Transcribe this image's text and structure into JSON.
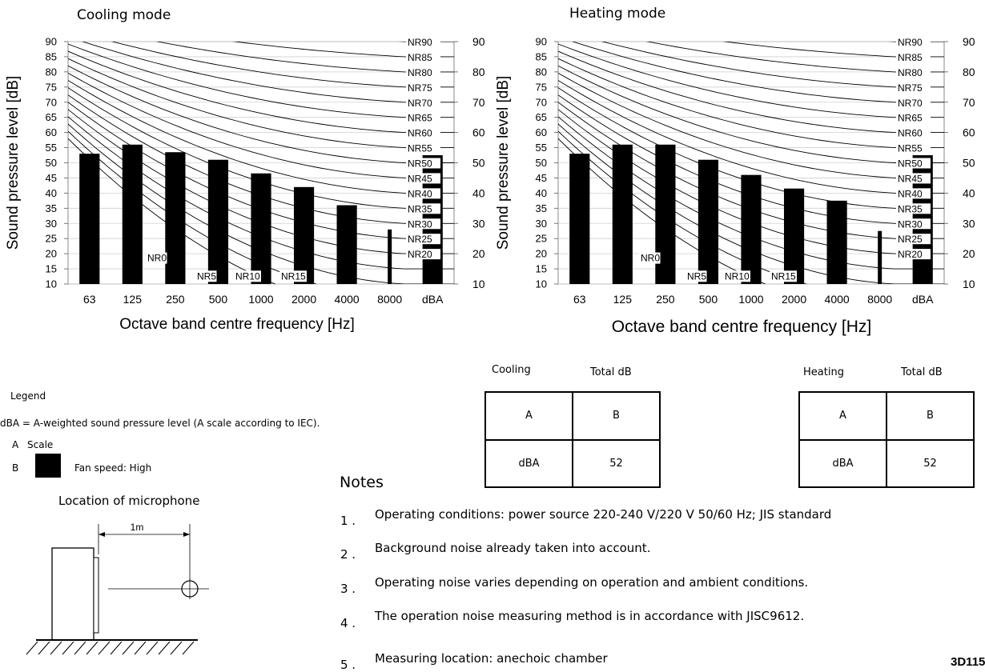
{
  "chart_data": [
    {
      "type": "bar",
      "title": "Cooling mode",
      "xlabel": "Octave band centre frequency [Hz]",
      "ylabel": "Sound pressure level [dB]",
      "categories": [
        "63",
        "125",
        "250",
        "500",
        "1000",
        "2000",
        "4000",
        "8000",
        "dBA"
      ],
      "values": [
        53,
        56,
        53.5,
        51,
        46.5,
        42,
        36,
        28,
        52.5
      ],
      "ylim": [
        10,
        90
      ],
      "yticks_left": [
        "10",
        "15",
        "20",
        "25",
        "30",
        "35",
        "40",
        "45",
        "50",
        "55",
        "60",
        "65",
        "70",
        "75",
        "80",
        "85",
        "90"
      ],
      "yticks_right": [
        "10",
        "20",
        "30",
        "40",
        "50",
        "60",
        "70",
        "80",
        "90"
      ],
      "nr_curves": [
        {
          "label": "NR90"
        },
        {
          "label": "NR85"
        },
        {
          "label": "NR80"
        },
        {
          "label": "NR75"
        },
        {
          "label": "NR70"
        },
        {
          "label": "NR65"
        },
        {
          "label": "NR60"
        },
        {
          "label": "NR55"
        },
        {
          "label": "NR50"
        },
        {
          "label": "NR45"
        },
        {
          "label": "NR40"
        },
        {
          "label": "NR35"
        },
        {
          "label": "NR30"
        },
        {
          "label": "NR25"
        },
        {
          "label": "NR20"
        }
      ],
      "nr_low_labels": [
        "NR0",
        "NR5",
        "NR10",
        "NR15"
      ],
      "bar_color": "#000000",
      "grid": true
    },
    {
      "type": "bar",
      "title": "Heating mode",
      "xlabel": "Octave band centre frequency [Hz]",
      "ylabel": "Sound pressure level [dB]",
      "categories": [
        "63",
        "125",
        "250",
        "500",
        "1000",
        "2000",
        "4000",
        "8000",
        "dBA"
      ],
      "values": [
        53,
        56,
        56,
        51,
        46,
        41.5,
        37.5,
        27.5,
        52.5
      ],
      "ylim": [
        10,
        90
      ],
      "yticks_left": [
        "10",
        "15",
        "20",
        "25",
        "30",
        "35",
        "40",
        "45",
        "50",
        "55",
        "60",
        "65",
        "70",
        "75",
        "80",
        "85",
        "90"
      ],
      "yticks_right": [
        "10",
        "20",
        "30",
        "40",
        "50",
        "60",
        "70",
        "80",
        "90"
      ],
      "nr_curves": [
        {
          "label": "NR90"
        },
        {
          "label": "NR85"
        },
        {
          "label": "NR80"
        },
        {
          "label": "NR75"
        },
        {
          "label": "NR70"
        },
        {
          "label": "NR65"
        },
        {
          "label": "NR60"
        },
        {
          "label": "NR55"
        },
        {
          "label": "NR50"
        },
        {
          "label": "NR45"
        },
        {
          "label": "NR40"
        },
        {
          "label": "NR35"
        },
        {
          "label": "NR30"
        },
        {
          "label": "NR25"
        },
        {
          "label": "NR20"
        }
      ],
      "nr_low_labels": [
        "NR0",
        "NR5",
        "NR10",
        "NR15"
      ],
      "bar_color": "#000000",
      "grid": true
    }
  ],
  "tables": {
    "cooling": {
      "mode_label": "Cooling",
      "total_label": "Total dB",
      "r1": [
        "A",
        "B"
      ],
      "r2": [
        "dBA",
        "52"
      ]
    },
    "heating": {
      "mode_label": "Heating",
      "total_label": "Total dB",
      "r1": [
        "A",
        "B"
      ],
      "r2": [
        "dBA",
        "52"
      ]
    }
  },
  "legend": {
    "title": "Legend",
    "dba_def": "dBA = A-weighted sound pressure level (A scale according to IEC).",
    "a_key": "A",
    "a_text": "Scale",
    "b_key": "B",
    "b_text": "Fan speed: High"
  },
  "microphone": {
    "title": "Location of microphone",
    "distance": "1m"
  },
  "notes": {
    "title": "Notes",
    "items": [
      {
        "num": "1 .",
        "text": "Operating conditions: power source 220-240 V/220 V 50/60 Hz; JIS standard"
      },
      {
        "num": "2 .",
        "text": "Background noise already taken into account."
      },
      {
        "num": "3 .",
        "text": "Operating noise varies depending on operation and ambient conditions."
      },
      {
        "num": "4 .",
        "text": "The operation noise measuring method is in accordance with JISC9612."
      },
      {
        "num": "5 .",
        "text": "Measuring location: anechoic chamber"
      }
    ]
  },
  "doc_code": "3D115"
}
